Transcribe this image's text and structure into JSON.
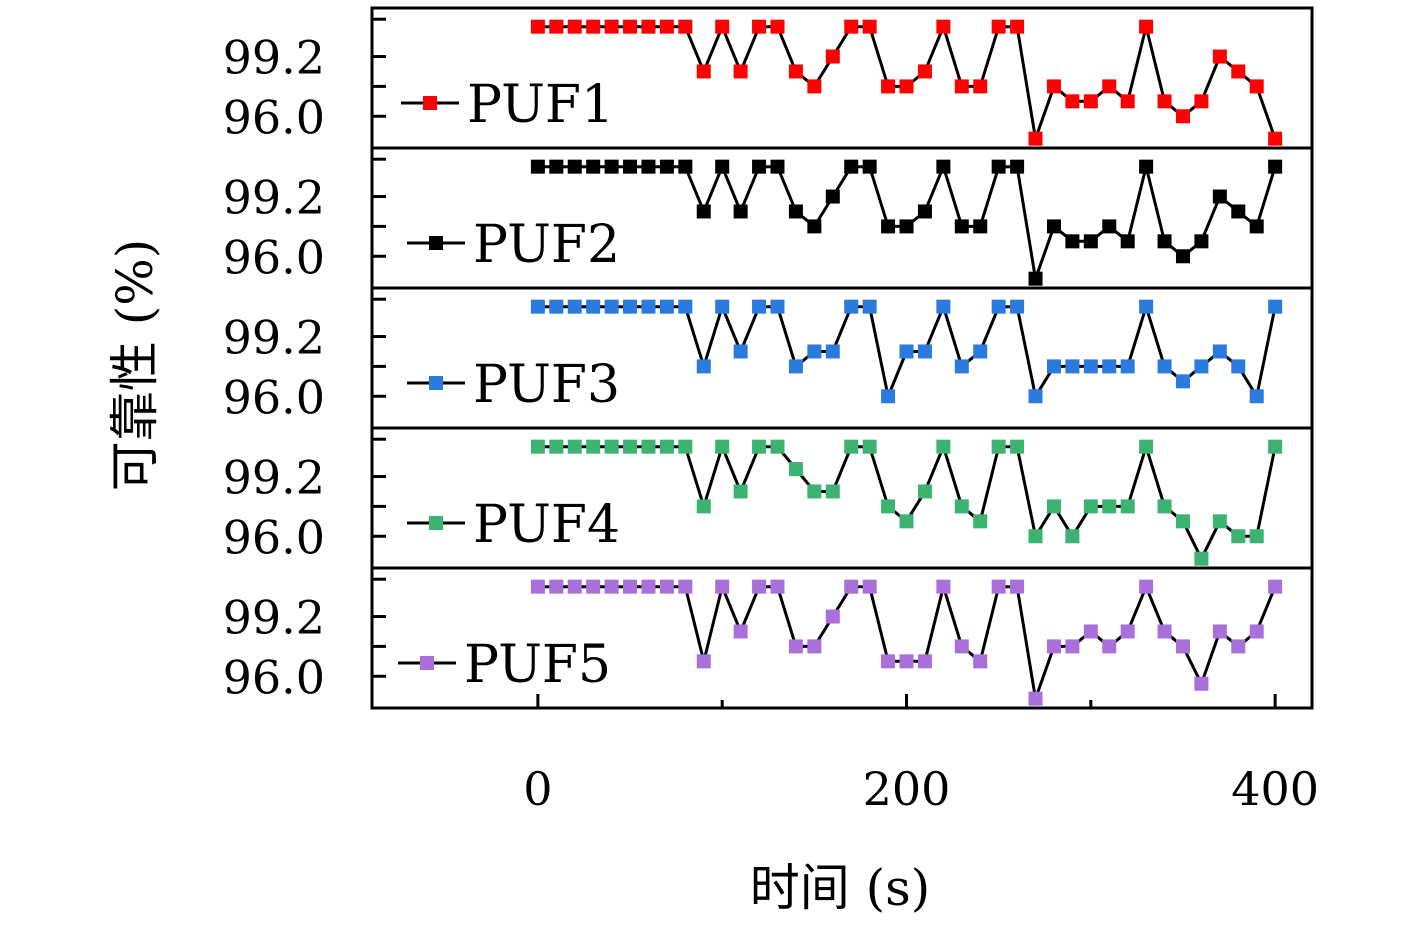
{
  "chart_data": {
    "type": "line",
    "xlabel": "时间 (s)",
    "ylabel": "可靠性 (%)",
    "x_ticks": [
      "0",
      "200",
      "400"
    ],
    "xlim": [
      -90,
      420
    ],
    "y_tick_labels": [
      "99.2",
      "96.0"
    ],
    "ylim": [
      94.3,
      101.8
    ],
    "x": [
      0,
      10,
      20,
      30,
      40,
      50,
      60,
      70,
      80,
      90,
      100,
      110,
      120,
      130,
      140,
      150,
      160,
      170,
      180,
      190,
      200,
      210,
      220,
      230,
      240,
      250,
      260,
      270,
      280,
      290,
      300,
      310,
      320,
      330,
      340,
      350,
      360,
      370,
      380,
      390,
      400
    ],
    "series": [
      {
        "name": "PUF1",
        "color": "#ff0000",
        "legend_label": "PUF1",
        "values": [
          100.8,
          100.8,
          100.8,
          100.8,
          100.8,
          100.8,
          100.8,
          100.8,
          100.8,
          98.4,
          100.8,
          98.4,
          100.8,
          100.8,
          98.4,
          97.6,
          99.2,
          100.8,
          100.8,
          97.6,
          97.6,
          98.4,
          100.8,
          97.6,
          97.6,
          100.8,
          100.8,
          94.8,
          97.6,
          96.8,
          96.8,
          97.6,
          96.8,
          100.8,
          96.8,
          96.0,
          96.8,
          99.2,
          98.4,
          97.6,
          94.8
        ]
      },
      {
        "name": "PUF2",
        "color": "#000000",
        "legend_label": "PUF2",
        "values": [
          100.8,
          100.8,
          100.8,
          100.8,
          100.8,
          100.8,
          100.8,
          100.8,
          100.8,
          98.4,
          100.8,
          98.4,
          100.8,
          100.8,
          98.4,
          97.6,
          99.2,
          100.8,
          100.8,
          97.6,
          97.6,
          98.4,
          100.8,
          97.6,
          97.6,
          100.8,
          100.8,
          94.8,
          97.6,
          96.8,
          96.8,
          97.6,
          96.8,
          100.8,
          96.8,
          96.0,
          96.8,
          99.2,
          98.4,
          97.6,
          100.8
        ]
      },
      {
        "name": "PUF3",
        "color": "#2b7bdf",
        "legend_label": "PUF3",
        "values": [
          100.8,
          100.8,
          100.8,
          100.8,
          100.8,
          100.8,
          100.8,
          100.8,
          100.8,
          97.6,
          100.8,
          98.4,
          100.8,
          100.8,
          97.6,
          98.4,
          98.4,
          100.8,
          100.8,
          96.0,
          98.4,
          98.4,
          100.8,
          97.6,
          98.4,
          100.8,
          100.8,
          96.0,
          97.6,
          97.6,
          97.6,
          97.6,
          97.6,
          100.8,
          97.6,
          96.8,
          97.6,
          98.4,
          97.6,
          96.0,
          100.8
        ]
      },
      {
        "name": "PUF4",
        "color": "#3cb371",
        "legend_label": "PUF4",
        "values": [
          100.8,
          100.8,
          100.8,
          100.8,
          100.8,
          100.8,
          100.8,
          100.8,
          100.8,
          97.6,
          100.8,
          98.4,
          100.8,
          100.8,
          99.6,
          98.4,
          98.4,
          100.8,
          100.8,
          97.6,
          96.8,
          98.4,
          100.8,
          97.6,
          96.8,
          100.8,
          100.8,
          96.0,
          97.6,
          96.0,
          97.6,
          97.6,
          97.6,
          100.8,
          97.6,
          96.8,
          94.8,
          96.8,
          96.0,
          96.0,
          100.8
        ]
      },
      {
        "name": "PUF5",
        "color": "#a970dc",
        "legend_label": "PUF5",
        "values": [
          100.8,
          100.8,
          100.8,
          100.8,
          100.8,
          100.8,
          100.8,
          100.8,
          100.8,
          96.8,
          100.8,
          98.4,
          100.8,
          100.8,
          97.6,
          97.6,
          99.2,
          100.8,
          100.8,
          96.8,
          96.8,
          96.8,
          100.8,
          97.6,
          96.8,
          100.8,
          100.8,
          94.8,
          97.6,
          97.6,
          98.4,
          97.6,
          98.4,
          100.8,
          98.4,
          97.6,
          95.6,
          98.4,
          97.6,
          98.4,
          100.8
        ]
      }
    ],
    "grid": false,
    "legend_placement": "left inside each panel"
  }
}
